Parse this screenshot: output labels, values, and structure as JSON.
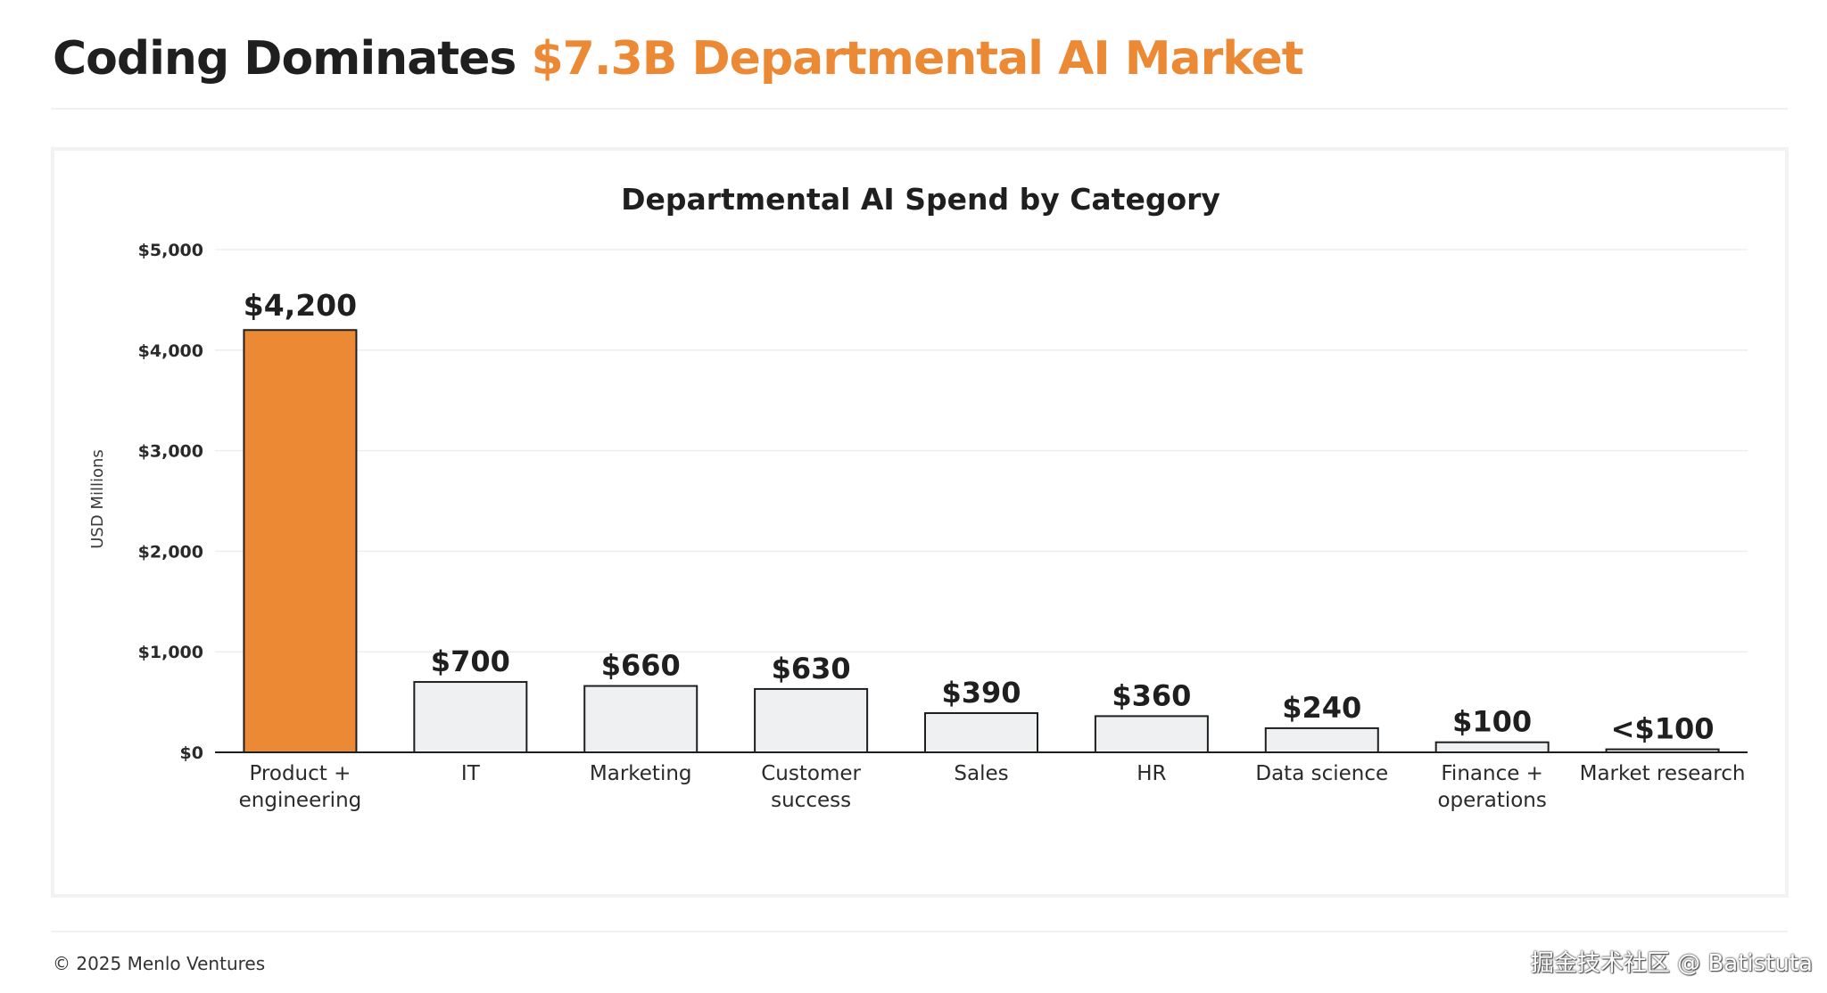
{
  "header": {
    "title_main": "Coding Dominates",
    "title_accent": "$7.3B Departmental AI Market"
  },
  "footer": {
    "copyright": "© 2025 Menlo Ventures",
    "watermark": "掘金技术社区 @ Batistuta"
  },
  "colors": {
    "accent": "#ec8935",
    "bar_default": "#eef0f1",
    "bar_stroke": "#1f1f1f"
  },
  "chart_data": {
    "type": "bar",
    "title": "Departmental AI Spend by Category",
    "xlabel": "",
    "ylabel": "USD Millions",
    "ylim": [
      0,
      5000
    ],
    "yticks": [
      0,
      1000,
      2000,
      3000,
      4000,
      5000
    ],
    "ytick_labels": [
      "$0",
      "$1,000",
      "$2,000",
      "$3,000",
      "$4,000",
      "$5,000"
    ],
    "grid": true,
    "categories": [
      [
        "Product +",
        "engineering"
      ],
      [
        "IT"
      ],
      [
        "Marketing"
      ],
      [
        "Customer",
        "success"
      ],
      [
        "Sales"
      ],
      [
        "HR"
      ],
      [
        "Data science"
      ],
      [
        "Finance +",
        "operations"
      ],
      [
        "Market research"
      ]
    ],
    "values": [
      4200,
      700,
      660,
      630,
      390,
      360,
      240,
      100,
      30
    ],
    "value_labels": [
      "$4,200",
      "$700",
      "$660",
      "$630",
      "$390",
      "$360",
      "$240",
      "$100",
      "<$100"
    ],
    "highlight": [
      true,
      false,
      false,
      false,
      false,
      false,
      false,
      false,
      false
    ]
  }
}
